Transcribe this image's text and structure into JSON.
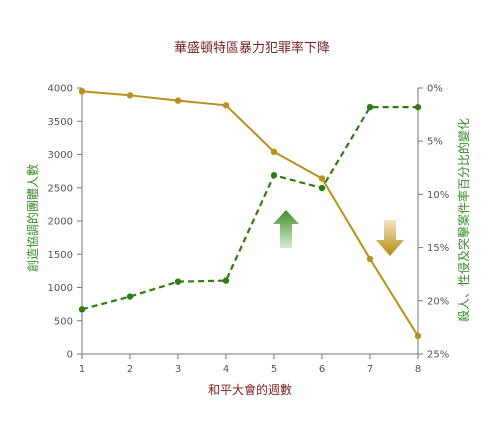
{
  "chart_data": {
    "type": "line",
    "title": "華盛頓特區暴力犯罪率下降",
    "xlabel": "和平大會的週數",
    "ylabel_left": "創造協調的團體人數",
    "ylabel_right": "殺人、性侵及突擊案件率百分比的變化",
    "x": [
      1,
      2,
      3,
      4,
      5,
      6,
      7,
      8
    ],
    "x_ticks": [
      "1",
      "2",
      "3",
      "4",
      "5",
      "6",
      "7",
      "8"
    ],
    "ylim_left": [
      0,
      4000
    ],
    "y_ticks_left": [
      "0",
      "500",
      "1000",
      "1500",
      "2000",
      "2500",
      "3000",
      "3500",
      "4000"
    ],
    "ylim_right": [
      0,
      25
    ],
    "right_axis_inverted": true,
    "y_ticks_right": [
      "0%",
      "5%",
      "10%",
      "15%",
      "20%",
      "25%"
    ],
    "series": [
      {
        "axis": "left",
        "style": "solid",
        "color": "#b8901a",
        "values": [
          3950,
          3890,
          3810,
          3740,
          3040,
          2640,
          1430,
          270
        ]
      },
      {
        "axis": "right",
        "style": "dashed",
        "color": "#2e7d12",
        "values": [
          20.8,
          19.6,
          18.2,
          18.1,
          8.2,
          9.4,
          1.8,
          1.8
        ]
      }
    ],
    "arrows": [
      {
        "direction": "up",
        "color": "#4a9a3a"
      },
      {
        "direction": "down",
        "color": "#b8901a"
      }
    ],
    "grid": false
  }
}
